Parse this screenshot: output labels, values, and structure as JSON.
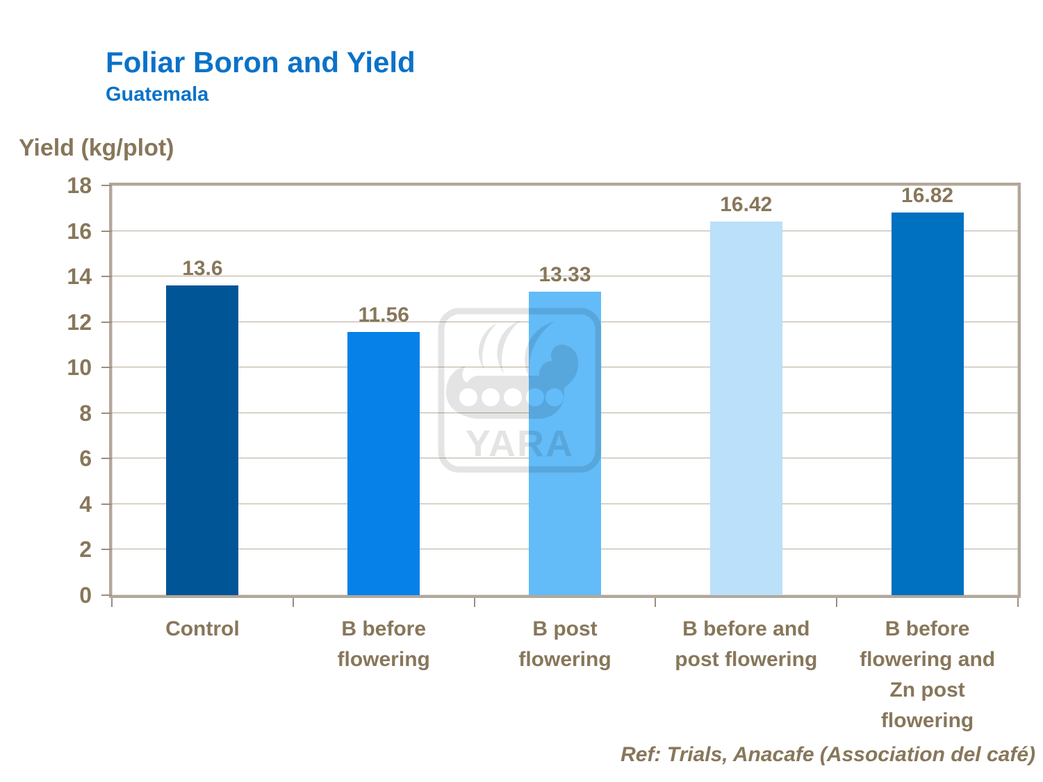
{
  "header": {
    "title": "Foliar Boron and Yield",
    "subtitle": "Guatemala"
  },
  "chart_data": {
    "type": "bar",
    "title": "Foliar Boron and Yield",
    "subtitle": "Guatemala",
    "ylabel": "Yield (kg/plot)",
    "xlabel": "",
    "categories": [
      "Control",
      "B before flowering",
      "B post flowering",
      "B before and post flowering",
      "B before flowering and Zn post flowering"
    ],
    "category_display_lines": [
      "Control",
      "B before\nflowering",
      "B post\nflowering",
      "B before and\npost flowering",
      "B before\nflowering and\nZn post\nflowering"
    ],
    "values": [
      13.6,
      11.56,
      13.33,
      16.42,
      16.82
    ],
    "value_labels": [
      "13.6",
      "11.56",
      "13.33",
      "16.42",
      "16.82"
    ],
    "ylim": [
      0,
      18
    ],
    "yticks": [
      0,
      2,
      4,
      6,
      8,
      10,
      12,
      14,
      16,
      18
    ],
    "grid": true,
    "legend_position": "none",
    "bar_colors": [
      "#005597",
      "#0581e8",
      "#63bbf7",
      "#bae0fa",
      "#0070c0"
    ],
    "axis_text_color": "#87775a",
    "frame_color": "#b2a79a",
    "title_color": "#0a72c8"
  },
  "watermark": {
    "name": "yara-viking-ship-logo",
    "text": "YARA"
  },
  "footer": {
    "ref": "Ref: Trials, Anacafe (Association del café)"
  }
}
